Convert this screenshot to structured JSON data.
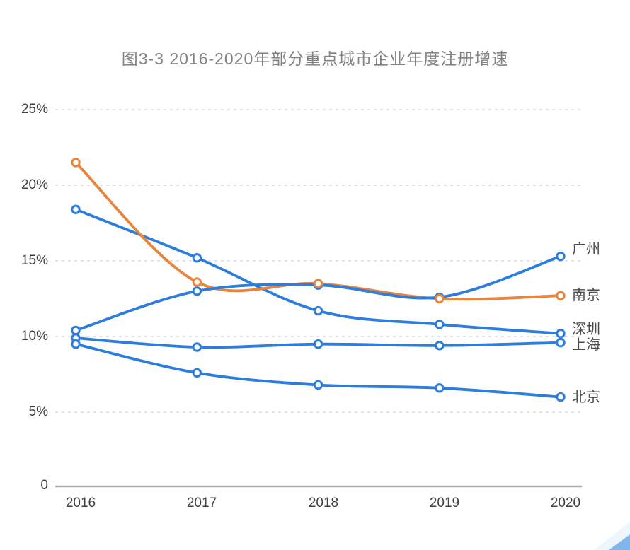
{
  "chart_data": {
    "type": "line",
    "title": "图3-3 2016-2020年部分重点城市企业年度注册增速",
    "categories": [
      "2016",
      "2017",
      "2018",
      "2019",
      "2020"
    ],
    "series": [
      {
        "name": "深圳",
        "color": "#2d7ddd",
        "values": [
          18.4,
          15.2,
          11.7,
          10.8,
          10.2
        ],
        "label_dy": -6,
        "marker_z": 0
      },
      {
        "name": "上海",
        "color": "#2d7ddd",
        "values": [
          9.9,
          9.3,
          9.5,
          9.4,
          9.6
        ],
        "label_dy": 3,
        "marker_z": 0
      },
      {
        "name": "北京",
        "color": "#2d7ddd",
        "values": [
          9.5,
          7.6,
          6.8,
          6.6,
          6.0
        ],
        "label_dy": 0,
        "marker_z": 0
      },
      {
        "name": "南京",
        "color": "#e8843c",
        "values": [
          21.5,
          13.6,
          13.5,
          12.5,
          12.7
        ],
        "label_dy": 0,
        "marker_z": 2
      },
      {
        "name": "广州",
        "color": "#2d7ddd",
        "values": [
          10.4,
          13.0,
          13.4,
          12.6,
          15.3
        ],
        "label_dy": -10,
        "marker_z": 1
      }
    ],
    "y_ticks": [
      {
        "value": 25,
        "label": "25%"
      },
      {
        "value": 20,
        "label": "20%"
      },
      {
        "value": 15,
        "label": "15%"
      },
      {
        "value": 10,
        "label": "10%"
      },
      {
        "value": 5,
        "label": "5%"
      },
      {
        "value": 0,
        "label": "0"
      }
    ],
    "ylim": [
      0,
      25
    ],
    "xlabel": "",
    "ylabel": "",
    "grid": "horizontal-dashed",
    "smooth": true,
    "legend_position": "right-of-last-point",
    "colors": {
      "blue": "#2d7ddd",
      "orange": "#e8843c",
      "gridline": "#d9d9d9",
      "axis": "#ababab"
    }
  },
  "decoration": {
    "corner_band_color": "#edf5fd",
    "corner_triangle_color": "#7fb6ee"
  }
}
